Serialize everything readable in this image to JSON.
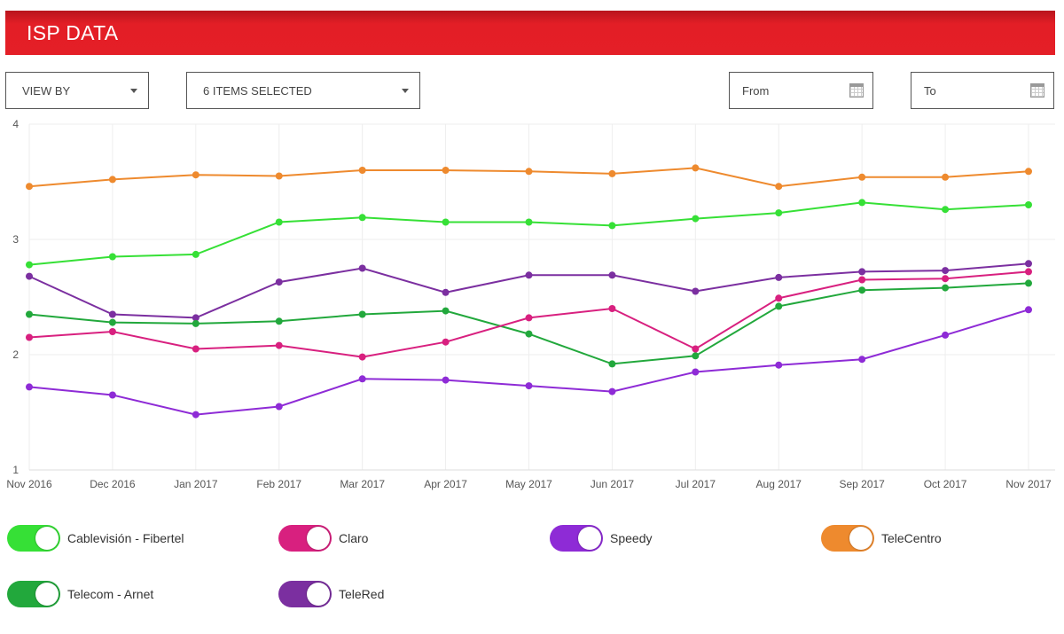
{
  "header": {
    "title": "ISP DATA"
  },
  "controls": {
    "view_by": "VIEW BY",
    "items_selected": "6 ITEMS SELECTED",
    "from_placeholder": "From",
    "to_placeholder": "To"
  },
  "chart_data": {
    "type": "line",
    "title": "",
    "xlabel": "",
    "ylabel": "",
    "ylim": [
      1,
      4
    ],
    "yticks": [
      "1",
      "2",
      "3",
      "4"
    ],
    "grid": true,
    "categories": [
      "Nov 2016",
      "Dec 2016",
      "Jan 2017",
      "Feb 2017",
      "Mar 2017",
      "Apr 2017",
      "May 2017",
      "Jun 2017",
      "Jul 2017",
      "Aug 2017",
      "Sep 2017",
      "Oct 2017",
      "Nov 2017"
    ],
    "series": [
      {
        "name": "TeleCentro",
        "color": "#ee8a2e",
        "values": [
          3.46,
          3.52,
          3.56,
          3.55,
          3.6,
          3.6,
          3.59,
          3.57,
          3.62,
          3.46,
          3.54,
          3.54,
          3.59
        ]
      },
      {
        "name": "Cablevisión - Fibertel",
        "color": "#36e036",
        "values": [
          2.78,
          2.85,
          2.87,
          3.15,
          3.19,
          3.15,
          3.15,
          3.12,
          3.18,
          3.23,
          3.32,
          3.26,
          3.3
        ]
      },
      {
        "name": "TeleRed",
        "color": "#7b2fa0",
        "values": [
          2.68,
          2.35,
          2.32,
          2.63,
          2.75,
          2.54,
          2.69,
          2.69,
          2.55,
          2.67,
          2.72,
          2.73,
          2.79
        ]
      },
      {
        "name": "Telecom - Arnet",
        "color": "#22a83c",
        "values": [
          2.35,
          2.28,
          2.27,
          2.29,
          2.35,
          2.38,
          2.18,
          1.92,
          1.99,
          2.42,
          2.56,
          2.58,
          2.62
        ]
      },
      {
        "name": "Claro",
        "color": "#d8207f",
        "values": [
          2.15,
          2.2,
          2.05,
          2.08,
          1.98,
          2.11,
          2.32,
          2.4,
          2.05,
          2.49,
          2.65,
          2.66,
          2.72
        ]
      },
      {
        "name": "Speedy",
        "color": "#8e2bd6",
        "values": [
          1.72,
          1.65,
          1.48,
          1.55,
          1.79,
          1.78,
          1.73,
          1.68,
          1.85,
          1.91,
          1.96,
          2.17,
          2.39
        ]
      }
    ],
    "legend": "bottom"
  },
  "legend": [
    {
      "label": "Cablevisión - Fibertel",
      "color": "#36e036",
      "on": true
    },
    {
      "label": "Claro",
      "color": "#d8207f",
      "on": true
    },
    {
      "label": "Speedy",
      "color": "#8e2bd6",
      "on": true
    },
    {
      "label": "TeleCentro",
      "color": "#ee8a2e",
      "on": true
    },
    {
      "label": "Telecom - Arnet",
      "color": "#22a83c",
      "on": true
    },
    {
      "label": "TeleRed",
      "color": "#7b2fa0",
      "on": true
    }
  ]
}
